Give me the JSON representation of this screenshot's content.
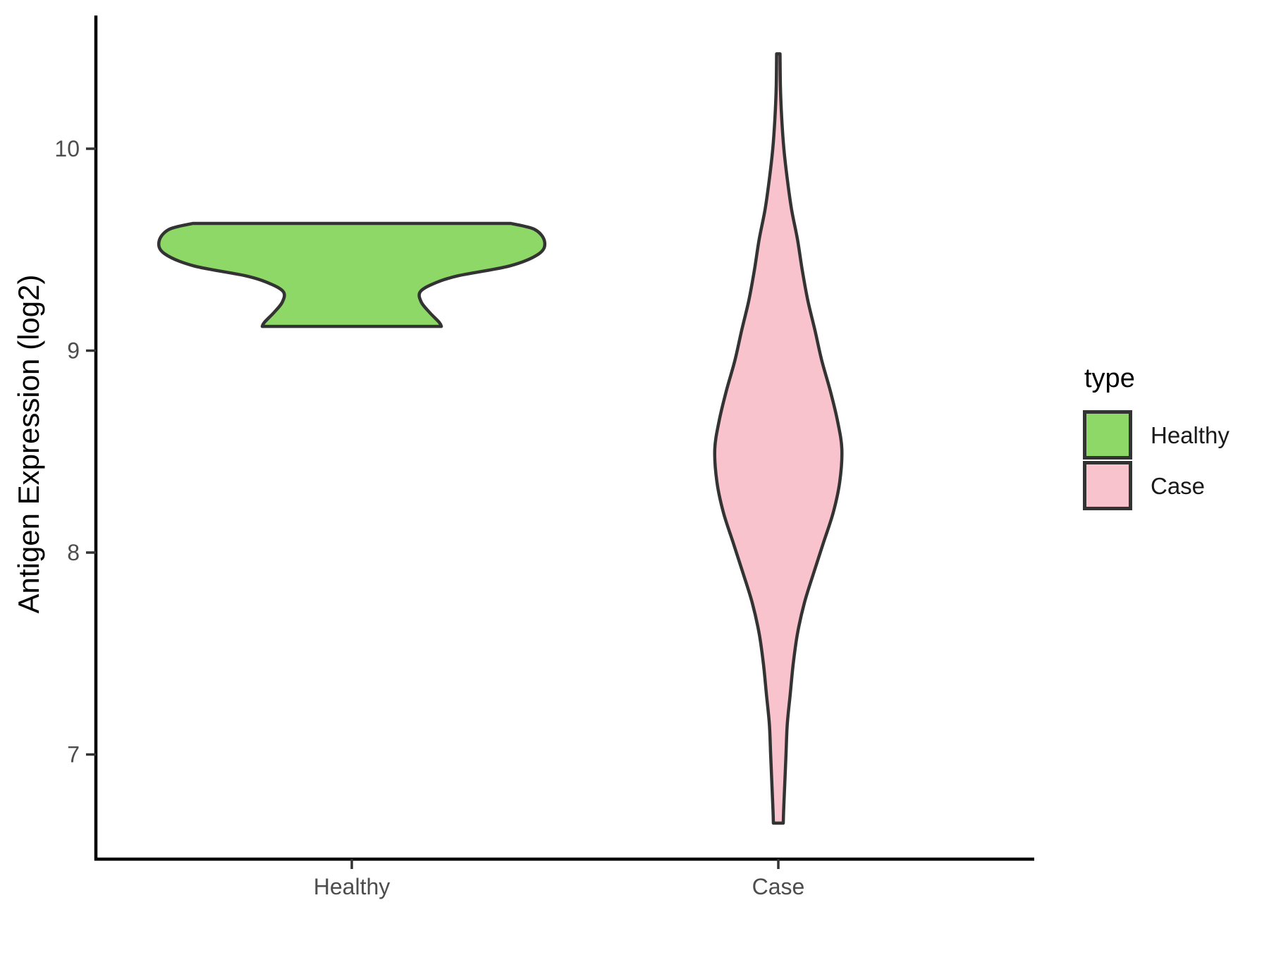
{
  "chart_data": {
    "type": "violin",
    "title": "",
    "xlabel": "",
    "ylabel": "Antigen Expression (log2)",
    "categories": [
      "Healthy",
      "Case"
    ],
    "yticks": [
      7,
      8,
      9,
      10
    ],
    "ylim": [
      6.45,
      10.7
    ],
    "grid": false,
    "legend": {
      "title": "type",
      "position": "right"
    },
    "series": [
      {
        "name": "Healthy",
        "fill": "#8dd866",
        "outline": "#333333",
        "min": 9.12,
        "max": 9.63,
        "peak_at": 9.54,
        "max_halfwidth_units": 0.452,
        "density_profile": [
          [
            9.63,
            0.373
          ],
          [
            9.6,
            0.429
          ],
          [
            9.54,
            0.452
          ],
          [
            9.48,
            0.439
          ],
          [
            9.42,
            0.371
          ],
          [
            9.37,
            0.248
          ],
          [
            9.33,
            0.19
          ],
          [
            9.29,
            0.16
          ],
          [
            9.24,
            0.163
          ],
          [
            9.19,
            0.182
          ],
          [
            9.14,
            0.205
          ],
          [
            9.12,
            0.21
          ]
        ]
      },
      {
        "name": "Case",
        "fill": "#f8c3cd",
        "outline": "#333333",
        "min": 6.66,
        "max": 10.47,
        "peak_at": 8.51,
        "max_halfwidth_units": 0.149,
        "density_profile": [
          [
            10.47,
            0.004
          ],
          [
            10.3,
            0.005
          ],
          [
            10.15,
            0.008
          ],
          [
            10.0,
            0.013
          ],
          [
            9.85,
            0.021
          ],
          [
            9.7,
            0.031
          ],
          [
            9.55,
            0.045
          ],
          [
            9.4,
            0.056
          ],
          [
            9.25,
            0.069
          ],
          [
            9.1,
            0.086
          ],
          [
            8.95,
            0.102
          ],
          [
            8.8,
            0.122
          ],
          [
            8.65,
            0.139
          ],
          [
            8.51,
            0.149
          ],
          [
            8.35,
            0.144
          ],
          [
            8.2,
            0.129
          ],
          [
            8.05,
            0.106
          ],
          [
            7.9,
            0.083
          ],
          [
            7.75,
            0.061
          ],
          [
            7.6,
            0.045
          ],
          [
            7.45,
            0.035
          ],
          [
            7.3,
            0.028
          ],
          [
            7.15,
            0.021
          ],
          [
            7.0,
            0.018
          ],
          [
            6.85,
            0.015
          ],
          [
            6.72,
            0.0124
          ],
          [
            6.66,
            0.0116
          ]
        ]
      }
    ]
  },
  "colors": {
    "background": "#ffffff",
    "axis_line": "#000000",
    "tick_mark": "#333333",
    "tick_label": "#4d4d4d",
    "axis_title": "#000000",
    "legend_text": "#1a1a1a"
  }
}
